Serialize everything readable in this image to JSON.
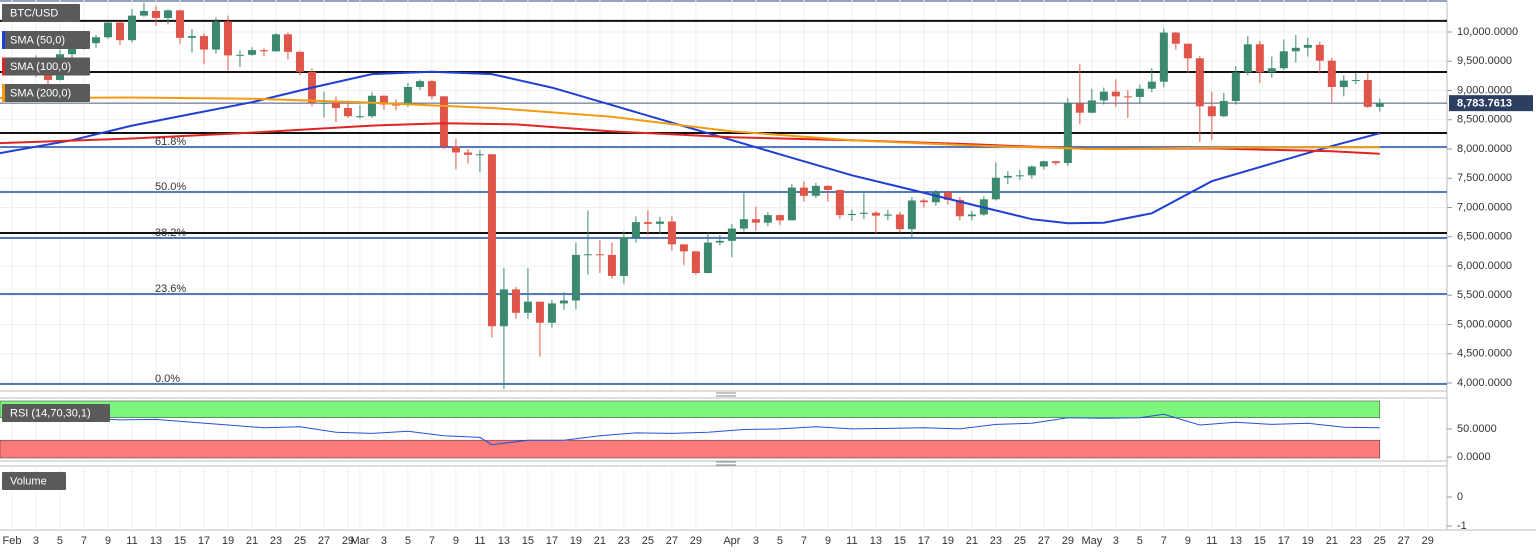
{
  "chart_data": [
    {
      "type": "candlestick",
      "title": "BTC/USD",
      "categories": [
        "Feb",
        null,
        "3",
        null,
        "5",
        null,
        "7",
        null,
        "9",
        null,
        "11",
        null,
        "13",
        null,
        "15",
        null,
        "17",
        null,
        "19",
        null,
        "21",
        null,
        "23",
        null,
        "25",
        null,
        "27",
        null,
        "29",
        "Mar",
        null,
        "3",
        null,
        "5",
        null,
        "7",
        null,
        "9",
        null,
        "11",
        null,
        "13",
        null,
        "15",
        null,
        "17",
        null,
        "19",
        null,
        "21",
        null,
        "23",
        null,
        "25",
        null,
        "27",
        null,
        "29",
        null,
        null,
        "Apr",
        null,
        "3",
        null,
        "5",
        null,
        "7",
        null,
        "9",
        null,
        "11",
        null,
        "13",
        null,
        "15",
        null,
        "17",
        null,
        "19",
        null,
        "21",
        null,
        "23",
        null,
        "25",
        null,
        "27",
        null,
        "29",
        null,
        "May",
        null,
        "3",
        null,
        "5",
        null,
        "7",
        null,
        "9",
        null,
        "11",
        null,
        "13",
        null,
        "15",
        null,
        "17",
        null,
        "19",
        null,
        "21",
        null,
        "23",
        null,
        "25",
        null,
        "27",
        null,
        "29"
      ],
      "open": [
        9350,
        9390,
        9340,
        9290,
        9180,
        9620,
        9760,
        9810,
        9910,
        10160,
        9860,
        10280,
        10360,
        10240,
        10370,
        9900,
        9930,
        9700,
        10180,
        9600,
        9610,
        9690,
        9670,
        9960,
        9660,
        9320,
        8790,
        8790,
        8700,
        8560,
        8560,
        8910,
        8760,
        8750,
        9060,
        9160,
        8900,
        8040,
        7940,
        7900,
        7910,
        4970,
        5600,
        5200,
        5390,
        5030,
        5360,
        5410,
        6190,
        6200,
        6190,
        5830,
        6490,
        6750,
        6720,
        6760,
        6370,
        6250,
        5880,
        6400,
        6430,
        6640,
        6800,
        6740,
        6870,
        6780,
        7340,
        7200,
        7370,
        7300,
        6870,
        6890,
        6910,
        6860,
        6880,
        6630,
        7120,
        7090,
        7260,
        7130,
        6850,
        6880,
        7140,
        7510,
        7540,
        7550,
        7700,
        7790,
        7760,
        8780,
        8620,
        8830,
        8980,
        8900,
        8890,
        9030,
        9150,
        9990,
        9800,
        9550,
        8730,
        8560,
        8820,
        9310,
        9790,
        9310,
        9380,
        9670,
        9730,
        9780,
        9510,
        9060,
        9170,
        9180,
        8720,
        null,
        null,
        null,
        null
      ],
      "high": [
        9460,
        9470,
        9600,
        9340,
        9700,
        9850,
        9880,
        9950,
        10180,
        10180,
        10390,
        10500,
        10450,
        10390,
        10380,
        10050,
        9980,
        10250,
        10280,
        9690,
        9740,
        9720,
        9980,
        9990,
        9680,
        9380,
        8980,
        8900,
        8790,
        8750,
        8970,
        8920,
        8850,
        9130,
        9190,
        9180,
        8910,
        8170,
        8000,
        7980,
        7910,
        5970,
        5640,
        5960,
        5390,
        5420,
        5550,
        6400,
        6950,
        6440,
        6400,
        6590,
        6850,
        6950,
        6840,
        6850,
        6370,
        6250,
        6570,
        6530,
        6720,
        7250,
        7010,
        6920,
        6880,
        7400,
        7450,
        7420,
        7380,
        7300,
        6960,
        7250,
        6940,
        6960,
        6930,
        7180,
        7150,
        7300,
        7290,
        7180,
        6940,
        7190,
        7770,
        7620,
        7640,
        7720,
        7800,
        7800,
        8870,
        9450,
        9030,
        9050,
        9190,
        9010,
        9100,
        9380,
        10060,
        10000,
        9800,
        9590,
        8980,
        8960,
        9420,
        9930,
        9850,
        9580,
        9870,
        9950,
        9900,
        9830,
        9560,
        9260,
        9300,
        9300,
        8860,
        null,
        null,
        null,
        null
      ],
      "low": [
        9300,
        9250,
        9230,
        9110,
        9170,
        9540,
        9700,
        9730,
        9880,
        9780,
        9820,
        10260,
        10100,
        10130,
        9800,
        9650,
        9450,
        9630,
        9340,
        9400,
        9590,
        9590,
        9660,
        9530,
        9260,
        8730,
        8540,
        8460,
        8530,
        8520,
        8530,
        8670,
        8660,
        8720,
        9010,
        8850,
        8000,
        7650,
        7750,
        7600,
        4780,
        3900,
        5100,
        5100,
        4450,
        4950,
        5250,
        5260,
        5850,
        5880,
        5780,
        5700,
        6400,
        6530,
        6550,
        6260,
        6020,
        5850,
        5870,
        6350,
        6150,
        6590,
        6600,
        6680,
        6700,
        6780,
        7100,
        7160,
        7100,
        6800,
        6770,
        6800,
        6560,
        6780,
        6570,
        6480,
        7000,
        7030,
        7050,
        6780,
        6780,
        6860,
        7120,
        7400,
        7470,
        7490,
        7650,
        7720,
        7710,
        8420,
        8610,
        8760,
        8720,
        8530,
        8770,
        8970,
        9050,
        9700,
        9300,
        8120,
        8150,
        8540,
        8760,
        9260,
        9130,
        9220,
        9350,
        9480,
        9580,
        9290,
        8800,
        8900,
        9110,
        8700,
        8640,
        null,
        null,
        null,
        null
      ],
      "close": [
        9390,
        9340,
        9290,
        9180,
        9620,
        9760,
        9810,
        9910,
        10160,
        9860,
        10280,
        10360,
        10240,
        10370,
        9900,
        9930,
        9700,
        10180,
        9600,
        9610,
        9690,
        9670,
        9960,
        9660,
        9320,
        8790,
        8790,
        8700,
        8560,
        8560,
        8910,
        8760,
        8750,
        9060,
        9160,
        8900,
        8040,
        7940,
        7900,
        7910,
        4970,
        5600,
        5200,
        5390,
        5030,
        5360,
        5410,
        6190,
        6200,
        6190,
        5830,
        6490,
        6750,
        6720,
        6760,
        6370,
        6250,
        5880,
        6400,
        6430,
        6640,
        6800,
        6740,
        6870,
        6780,
        7340,
        7200,
        7370,
        7300,
        6870,
        6890,
        6910,
        6860,
        6880,
        6630,
        7120,
        7090,
        7260,
        7130,
        6850,
        6880,
        7140,
        7510,
        7540,
        7550,
        7700,
        7790,
        7760,
        8780,
        8620,
        8830,
        8980,
        8900,
        8890,
        9030,
        9150,
        9990,
        9800,
        9550,
        8730,
        8560,
        8820,
        9310,
        9790,
        9310,
        9380,
        9670,
        9730,
        9780,
        9510,
        9060,
        9170,
        9180,
        8720,
        8784,
        null,
        null,
        null,
        null
      ],
      "up_color": "#3b8a6e",
      "down_color": "#e0554a",
      "series": [
        {
          "name": "SMA (50,0)",
          "color": "#1f3fd6",
          "x": [
            -1,
            5,
            10,
            15,
            20,
            25,
            30,
            35,
            40,
            45,
            50,
            55,
            60,
            65,
            70,
            75,
            80,
            85,
            88,
            91,
            95,
            100,
            105,
            110,
            114
          ],
          "values": [
            7930,
            8150,
            8400,
            8600,
            8800,
            9050,
            9280,
            9320,
            9280,
            9050,
            8750,
            8450,
            8150,
            7850,
            7550,
            7300,
            7050,
            6800,
            6730,
            6740,
            6900,
            7450,
            7750,
            8050,
            8270
          ]
        },
        {
          "name": "SMA (100,0)",
          "color": "#e02424",
          "x": [
            -1,
            10,
            20,
            30,
            36,
            42,
            50,
            60,
            70,
            80,
            90,
            100,
            110,
            114
          ],
          "values": [
            8100,
            8180,
            8280,
            8400,
            8440,
            8420,
            8300,
            8200,
            8150,
            8080,
            8000,
            8010,
            7960,
            7920
          ]
        },
        {
          "name": "SMA (200,0)",
          "color": "#f39c12",
          "x": [
            -1,
            10,
            20,
            29,
            40,
            50,
            60,
            70,
            80,
            90,
            100,
            110,
            114
          ],
          "values": [
            8870,
            8880,
            8860,
            8800,
            8700,
            8550,
            8300,
            8150,
            8060,
            8000,
            8020,
            8030,
            8030
          ]
        }
      ],
      "xlim": [
        -1,
        119.6
      ],
      "ylim": [
        3880,
        10547
      ],
      "yticks": [
        {
          "value": 4000,
          "label": "4,000.0000"
        },
        {
          "value": 4500,
          "label": "4,500.0000"
        },
        {
          "value": 5000,
          "label": "5,000.0000"
        },
        {
          "value": 5500,
          "label": "5,500.0000"
        },
        {
          "value": 6000,
          "label": "6,000.0000"
        },
        {
          "value": 6500,
          "label": "6,500.0000"
        },
        {
          "value": 7000,
          "label": "7,000.0000"
        },
        {
          "value": 7500,
          "label": "7,500.0000"
        },
        {
          "value": 8000,
          "label": "8,000.0000"
        },
        {
          "value": 8500,
          "label": "8,500.0000"
        },
        {
          "value": 9000,
          "label": "9,000.0000"
        },
        {
          "value": 9500,
          "label": "9,500.0000"
        },
        {
          "value": 10000,
          "label": "10,000.0000"
        }
      ],
      "grid": true,
      "last_price": {
        "value": 8783.7613,
        "label": "8,783.7613"
      },
      "levels": [
        10190,
        9317,
        8274,
        6564
      ],
      "fib_levels": [
        {
          "label": "61.8%",
          "price": 8034
        },
        {
          "label": "50.0%",
          "price": 7265
        },
        {
          "label": "38.2%",
          "price": 6479
        },
        {
          "label": "23.6%",
          "price": 5521
        },
        {
          "label": "0.0%",
          "price": 3983
        }
      ]
    },
    {
      "type": "line",
      "title": "RSI (14,70,30,1)",
      "color": "#2a4fd8",
      "x": [
        0,
        3,
        6,
        9,
        12,
        15,
        18,
        21,
        24,
        27,
        30,
        33,
        36,
        39,
        40,
        43,
        46,
        49,
        52,
        55,
        58,
        61,
        64,
        67,
        70,
        73,
        76,
        79,
        82,
        85,
        88,
        91,
        94,
        96,
        99,
        102,
        105,
        108,
        111,
        114
      ],
      "values": [
        68,
        63,
        70,
        66,
        67,
        62,
        57,
        52,
        54,
        44,
        42,
        46,
        38,
        35,
        22,
        30,
        30,
        38,
        43,
        42,
        44,
        49,
        50,
        54,
        50,
        51,
        52,
        50,
        58,
        60,
        70,
        69,
        70,
        76,
        57,
        62,
        58,
        60,
        53,
        52
      ],
      "overbought": 70,
      "oversold": 30,
      "overbought_color": "#7cf57c",
      "oversold_color": "#fb7b7b",
      "ylim": [
        -7,
        105
      ],
      "yticks": [
        {
          "value": 0,
          "label": "0.0000"
        },
        {
          "value": 50,
          "label": "50.0000"
        }
      ]
    },
    {
      "type": "volume",
      "title": "Volume",
      "ylim": [
        -1.14,
        1.07
      ],
      "yticks": [
        0,
        -1
      ]
    }
  ]
}
